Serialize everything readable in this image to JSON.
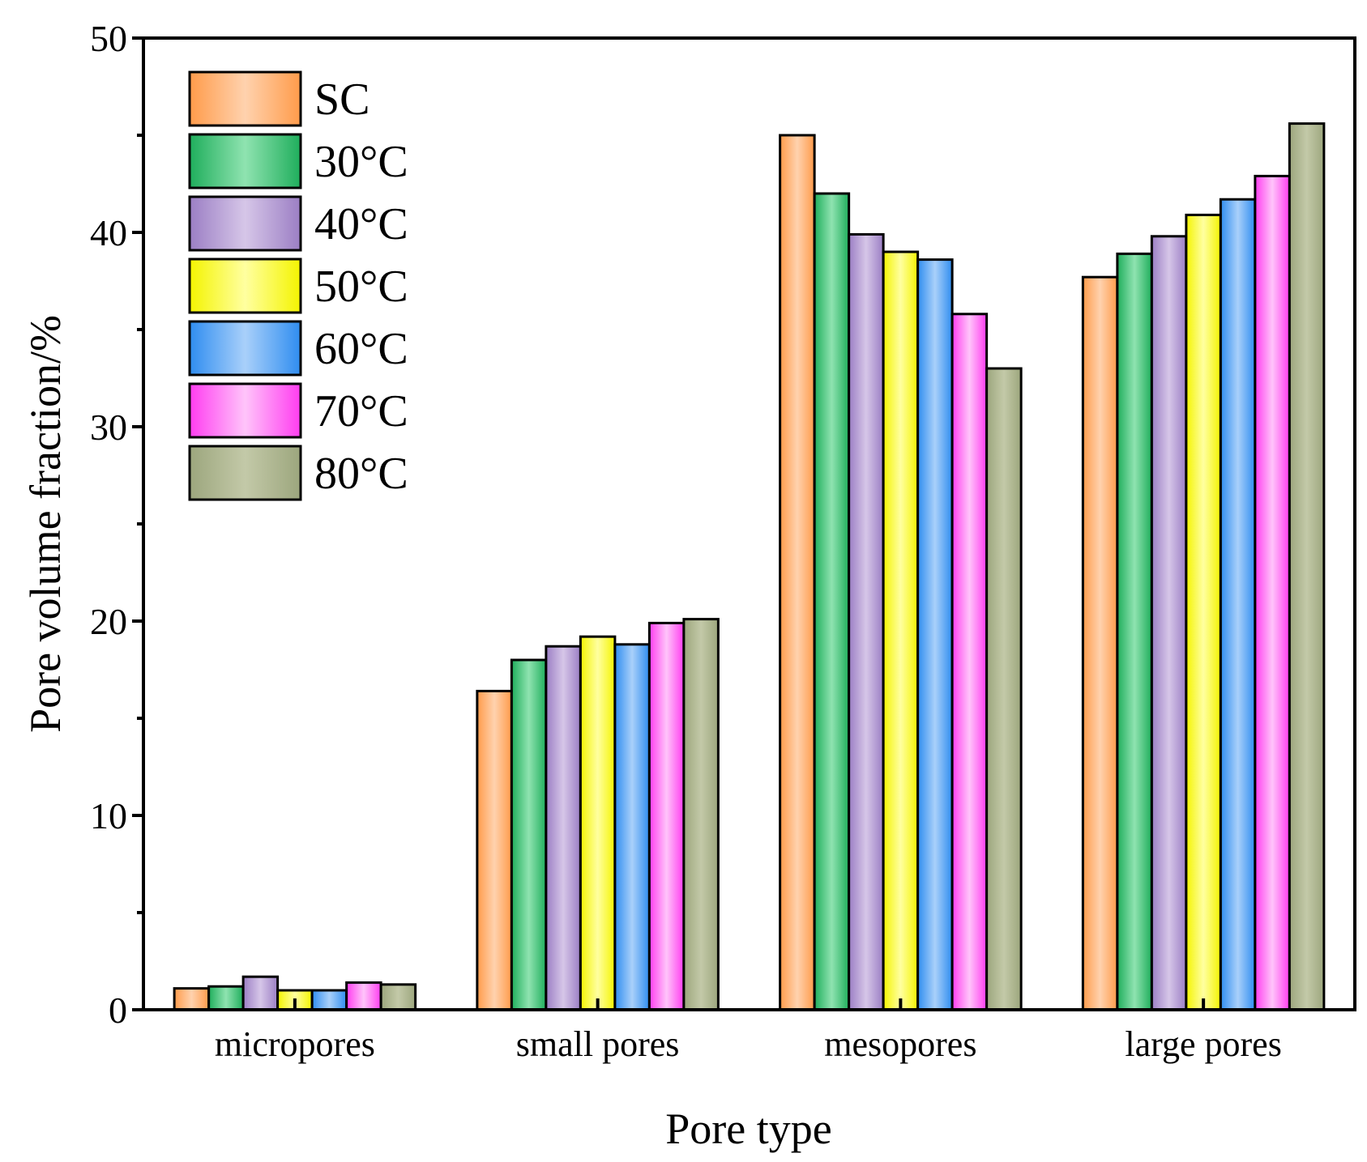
{
  "chart_data": {
    "type": "bar",
    "title": "",
    "xlabel": "Pore type",
    "ylabel": "Pore volume fraction/%",
    "ylim": [
      0,
      50
    ],
    "yticks": [
      0,
      10,
      20,
      30,
      40,
      50
    ],
    "grid": false,
    "legend_position": "top-left",
    "categories": [
      "micropores",
      "small pores",
      "mesopores",
      "large pores"
    ],
    "series": [
      {
        "name": "SC",
        "color": "#ff9b4a",
        "light": "#ffd2ae",
        "values": [
          1.1,
          16.4,
          45.0,
          37.7
        ]
      },
      {
        "name": "30°C",
        "color": "#1fae5c",
        "light": "#8fe3b0",
        "values": [
          1.2,
          18.0,
          42.0,
          38.9
        ]
      },
      {
        "name": "40°C",
        "color": "#9b7ec4",
        "light": "#d6c6e8",
        "values": [
          1.7,
          18.7,
          39.9,
          39.8
        ]
      },
      {
        "name": "50°C",
        "color": "#f4f400",
        "light": "#ffffa0",
        "values": [
          1.0,
          19.2,
          39.0,
          40.9
        ]
      },
      {
        "name": "60°C",
        "color": "#2f8df0",
        "light": "#a9d0fa",
        "values": [
          1.0,
          18.8,
          38.6,
          41.7
        ]
      },
      {
        "name": "70°C",
        "color": "#ff3cf0",
        "light": "#ffc4fa",
        "values": [
          1.4,
          19.9,
          35.8,
          42.9
        ]
      },
      {
        "name": "80°C",
        "color": "#9ca67d",
        "light": "#c3c9a8",
        "values": [
          1.3,
          20.1,
          33.0,
          45.6
        ]
      }
    ]
  }
}
